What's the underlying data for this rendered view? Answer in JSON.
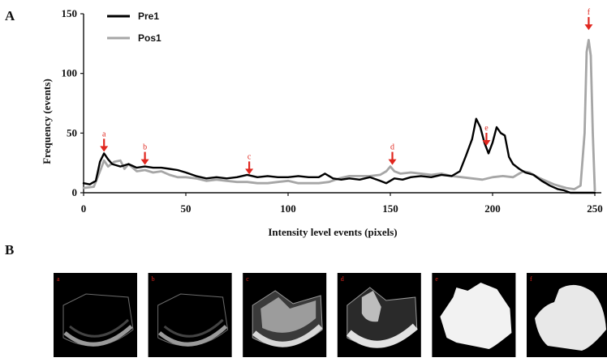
{
  "panels": {
    "a_label": "A",
    "b_label": "B"
  },
  "chart_data": {
    "type": "line",
    "title": "",
    "xlabel": "Intensity level events (pixels)",
    "ylabel": "Frequency (events)",
    "xlim": [
      0,
      250
    ],
    "ylim": [
      0,
      150
    ],
    "xticks": [
      0,
      50,
      100,
      150,
      200,
      250
    ],
    "yticks": [
      0,
      50,
      100,
      150
    ],
    "x_tick_labels": [
      "0",
      "50",
      "100",
      "150",
      "200",
      "250"
    ],
    "y_tick_labels": [
      "0",
      "50",
      "100",
      "150"
    ],
    "legend_position": "top-left",
    "grid": false,
    "series": [
      {
        "name": "Pre1",
        "color": "#000000",
        "points": [
          [
            0,
            8
          ],
          [
            3,
            7
          ],
          [
            6,
            10
          ],
          [
            8,
            26
          ],
          [
            10,
            33
          ],
          [
            12,
            28
          ],
          [
            14,
            24
          ],
          [
            18,
            22
          ],
          [
            22,
            24
          ],
          [
            26,
            21
          ],
          [
            30,
            22
          ],
          [
            34,
            21
          ],
          [
            38,
            21
          ],
          [
            42,
            20
          ],
          [
            46,
            19
          ],
          [
            50,
            17
          ],
          [
            55,
            14
          ],
          [
            60,
            12
          ],
          [
            65,
            13
          ],
          [
            70,
            12
          ],
          [
            75,
            13
          ],
          [
            80,
            15
          ],
          [
            85,
            13
          ],
          [
            90,
            14
          ],
          [
            95,
            13
          ],
          [
            100,
            13
          ],
          [
            105,
            14
          ],
          [
            110,
            13
          ],
          [
            115,
            13
          ],
          [
            118,
            16
          ],
          [
            122,
            12
          ],
          [
            126,
            11
          ],
          [
            130,
            12
          ],
          [
            135,
            11
          ],
          [
            140,
            13
          ],
          [
            145,
            10
          ],
          [
            148,
            8
          ],
          [
            152,
            12
          ],
          [
            156,
            11
          ],
          [
            160,
            13
          ],
          [
            165,
            14
          ],
          [
            170,
            13
          ],
          [
            175,
            15
          ],
          [
            180,
            14
          ],
          [
            184,
            18
          ],
          [
            187,
            31
          ],
          [
            190,
            45
          ],
          [
            192,
            62
          ],
          [
            194,
            55
          ],
          [
            196,
            42
          ],
          [
            198,
            33
          ],
          [
            200,
            42
          ],
          [
            202,
            55
          ],
          [
            204,
            50
          ],
          [
            206,
            48
          ],
          [
            208,
            30
          ],
          [
            210,
            24
          ],
          [
            213,
            20
          ],
          [
            216,
            17
          ],
          [
            220,
            15
          ],
          [
            224,
            10
          ],
          [
            228,
            6
          ],
          [
            232,
            3
          ],
          [
            235,
            2
          ],
          [
            238,
            0
          ],
          [
            250,
            0
          ]
        ]
      },
      {
        "name": "Pos1",
        "color": "#a6a6a6",
        "points": [
          [
            0,
            4
          ],
          [
            5,
            5
          ],
          [
            8,
            18
          ],
          [
            10,
            27
          ],
          [
            12,
            22
          ],
          [
            15,
            26
          ],
          [
            18,
            27
          ],
          [
            20,
            20
          ],
          [
            22,
            24
          ],
          [
            26,
            18
          ],
          [
            30,
            19
          ],
          [
            34,
            17
          ],
          [
            38,
            18
          ],
          [
            42,
            15
          ],
          [
            46,
            13
          ],
          [
            50,
            13
          ],
          [
            55,
            12
          ],
          [
            60,
            10
          ],
          [
            65,
            11
          ],
          [
            70,
            10
          ],
          [
            75,
            9
          ],
          [
            80,
            9
          ],
          [
            85,
            8
          ],
          [
            90,
            8
          ],
          [
            95,
            9
          ],
          [
            100,
            10
          ],
          [
            105,
            8
          ],
          [
            110,
            8
          ],
          [
            115,
            8
          ],
          [
            120,
            9
          ],
          [
            125,
            12
          ],
          [
            130,
            14
          ],
          [
            135,
            14
          ],
          [
            140,
            14
          ],
          [
            145,
            15
          ],
          [
            148,
            18
          ],
          [
            150,
            22
          ],
          [
            152,
            18
          ],
          [
            155,
            16
          ],
          [
            160,
            17
          ],
          [
            165,
            16
          ],
          [
            170,
            15
          ],
          [
            175,
            16
          ],
          [
            180,
            14
          ],
          [
            185,
            13
          ],
          [
            190,
            12
          ],
          [
            195,
            11
          ],
          [
            200,
            13
          ],
          [
            205,
            14
          ],
          [
            210,
            13
          ],
          [
            215,
            18
          ],
          [
            218,
            17
          ],
          [
            222,
            13
          ],
          [
            226,
            10
          ],
          [
            230,
            7
          ],
          [
            236,
            4
          ],
          [
            240,
            3
          ],
          [
            243,
            6
          ],
          [
            245,
            50
          ],
          [
            246,
            118
          ],
          [
            247,
            128
          ],
          [
            248,
            115
          ],
          [
            249,
            50
          ],
          [
            250,
            2
          ]
        ]
      }
    ],
    "annotations": [
      {
        "label": "a",
        "x": 10,
        "y": 33
      },
      {
        "label": "b",
        "x": 30,
        "y": 22
      },
      {
        "label": "c",
        "x": 81,
        "y": 14
      },
      {
        "label": "d",
        "x": 151,
        "y": 22
      },
      {
        "label": "e",
        "x": 197,
        "y": 38
      },
      {
        "label": "f",
        "x": 247,
        "y": 135
      }
    ]
  },
  "thumbnails": [
    {
      "label": "a",
      "kind": "arc-faint"
    },
    {
      "label": "b",
      "kind": "arc-faint"
    },
    {
      "label": "c",
      "kind": "arc-mid"
    },
    {
      "label": "d",
      "kind": "arc-strong"
    },
    {
      "label": "e",
      "kind": "blob"
    },
    {
      "label": "f",
      "kind": "blob-smooth"
    }
  ],
  "colors": {
    "marker": "#e0271f",
    "thumb_background": "#000000"
  }
}
